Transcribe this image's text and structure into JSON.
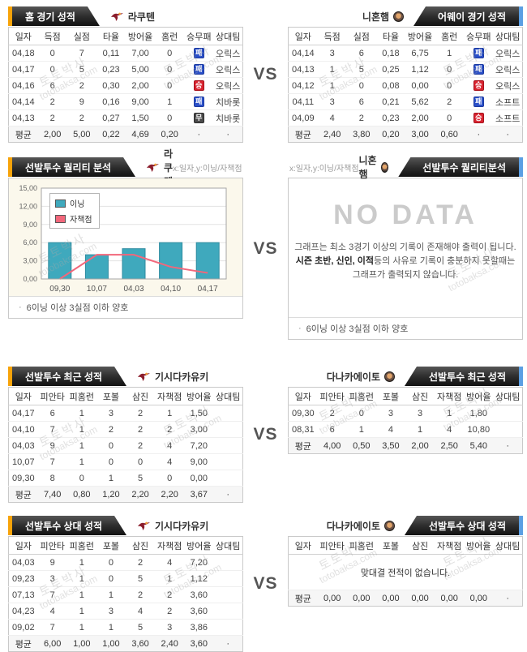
{
  "vs": "VS",
  "bullet": "·",
  "watermark": {
    "kr": "토토박사",
    "en": "totobaksa.com"
  },
  "colors": {
    "accent_left": "#f7a30a",
    "accent_right": "#5b9fe3",
    "win": "#d8232f",
    "loss": "#2b50c8",
    "draw": "#4a4a4a",
    "bar": "#3fa9bd",
    "line": "#f2677b",
    "banner_dark": "#2e2e2e"
  },
  "chart_data": {
    "type": "bar",
    "title": "선발투수 퀄리티 분석 (라쿠텐)",
    "xlabel": "일자",
    "ylabel": "이닝/자책점",
    "categories": [
      "09,30",
      "10,07",
      "04,03",
      "04,10",
      "04,17"
    ],
    "series": [
      {
        "name": "이닝",
        "kind": "bar",
        "color": "#3fa9bd",
        "values": [
          6,
          4,
          5,
          6,
          6
        ]
      },
      {
        "name": "자책점",
        "kind": "line",
        "color": "#f2677b",
        "values": [
          0,
          4,
          4,
          2,
          1
        ]
      }
    ],
    "ylim": [
      0,
      15
    ],
    "yticks": [
      "0,00",
      "3,00",
      "6,00",
      "9,00",
      "12,00",
      "15,00"
    ],
    "grid": true,
    "legend_position": "top-left"
  },
  "sections": {
    "s1": {
      "left": {
        "title": "홈 경기 성적",
        "team": "라쿠텐",
        "table": {
          "columns": [
            "일자",
            "득점",
            "실점",
            "타율",
            "방어율",
            "홈런",
            "승무패",
            "상대팀"
          ],
          "rows": [
            [
              "04,18",
              "0",
              "7",
              "0,11",
              "7,00",
              "0",
              {
                "b": "패",
                "t": "loss"
              },
              "오릭스"
            ],
            [
              "04,17",
              "0",
              "5",
              "0,23",
              "5,00",
              "0",
              {
                "b": "패",
                "t": "loss"
              },
              "오릭스"
            ],
            [
              "04,16",
              "6",
              "2",
              "0,30",
              "2,00",
              "0",
              {
                "b": "승",
                "t": "win"
              },
              "오릭스"
            ],
            [
              "04,14",
              "2",
              "9",
              "0,16",
              "9,00",
              "1",
              {
                "b": "패",
                "t": "loss"
              },
              "치바롯"
            ],
            [
              "04,13",
              "2",
              "2",
              "0,27",
              "1,50",
              "0",
              {
                "b": "무",
                "t": "draw"
              },
              "치바롯"
            ]
          ],
          "avg": [
            "평균",
            "2,00",
            "5,00",
            "0,22",
            "4,69",
            "0,20",
            "·",
            "·"
          ]
        }
      },
      "right": {
        "title": "어웨이 경기 성적",
        "team": "니혼햄",
        "table": {
          "columns": [
            "일자",
            "득점",
            "실점",
            "타율",
            "방어율",
            "홈런",
            "승무패",
            "상대팀"
          ],
          "rows": [
            [
              "04,14",
              "3",
              "6",
              "0,18",
              "6,75",
              "1",
              {
                "b": "패",
                "t": "loss"
              },
              "오릭스"
            ],
            [
              "04,13",
              "1",
              "5",
              "0,25",
              "1,12",
              "0",
              {
                "b": "패",
                "t": "loss"
              },
              "오릭스"
            ],
            [
              "04,12",
              "1",
              "0",
              "0,08",
              "0,00",
              "0",
              {
                "b": "승",
                "t": "win"
              },
              "오릭스"
            ],
            [
              "04,11",
              "3",
              "6",
              "0,21",
              "5,62",
              "2",
              {
                "b": "패",
                "t": "loss"
              },
              "소프트"
            ],
            [
              "04,09",
              "4",
              "2",
              "0,23",
              "2,00",
              "0",
              {
                "b": "승",
                "t": "win"
              },
              "소프트"
            ]
          ],
          "avg": [
            "평균",
            "2,40",
            "3,80",
            "0,20",
            "3,00",
            "0,60",
            "·",
            "·"
          ]
        }
      }
    },
    "s2": {
      "axis_note": "x:일자,y:이닝/자책점",
      "footnote": "6이닝 이상 3실점 이하 양호",
      "left": {
        "title": "선발투수 퀄리티 분석",
        "team": "라쿠텐"
      },
      "right": {
        "title": "선발투수 퀄리티분석",
        "team": "니혼햄",
        "no_data": {
          "title": "NO DATA",
          "line1": "그래프는 최소 3경기 이상의 기록이 존재해야 출력이 됩니다.",
          "line2_bold": "시즌 초반, 신인, 이적",
          "line2_rest": "등의 사유로 기록이 충분하지 못할때는",
          "line3": "그래프가 출력되지 않습니다."
        }
      }
    },
    "s3": {
      "left": {
        "title": "선발투수 최근 성적",
        "team": "기시다카유키",
        "table": {
          "columns": [
            "일자",
            "피안타",
            "피홈런",
            "포볼",
            "삼진",
            "자책점",
            "방어율",
            "상대팀"
          ],
          "rows": [
            [
              "04,17",
              "6",
              "1",
              "3",
              "2",
              "1",
              "1,50",
              ""
            ],
            [
              "04,10",
              "7",
              "1",
              "2",
              "2",
              "2",
              "3,00",
              ""
            ],
            [
              "04,03",
              "9",
              "1",
              "0",
              "2",
              "4",
              "7,20",
              ""
            ],
            [
              "10,07",
              "7",
              "1",
              "0",
              "0",
              "4",
              "9,00",
              ""
            ],
            [
              "09,30",
              "8",
              "0",
              "1",
              "5",
              "0",
              "0,00",
              ""
            ]
          ],
          "avg": [
            "평균",
            "7,40",
            "0,80",
            "1,20",
            "2,20",
            "2,20",
            "3,67",
            "·"
          ]
        }
      },
      "right": {
        "title": "선발투수 최근 성적",
        "team": "다나카에이토",
        "table": {
          "columns": [
            "일자",
            "피안타",
            "피홈런",
            "포볼",
            "삼진",
            "자책점",
            "방어율",
            "상대팀"
          ],
          "rows": [
            [
              "09,30",
              "2",
              "0",
              "3",
              "3",
              "1",
              "1,80",
              ""
            ],
            [
              "08,31",
              "6",
              "1",
              "4",
              "1",
              "4",
              "10,80",
              ""
            ]
          ],
          "avg": [
            "평균",
            "4,00",
            "0,50",
            "3,50",
            "2,00",
            "2,50",
            "5,40",
            "·"
          ]
        }
      }
    },
    "s4": {
      "left": {
        "title": "선발투수 상대 성적",
        "team": "기시다카유키",
        "table": {
          "columns": [
            "일자",
            "피안타",
            "피홈런",
            "포볼",
            "삼진",
            "자책점",
            "방어율",
            "상대팀"
          ],
          "rows": [
            [
              "04,03",
              "9",
              "1",
              "0",
              "2",
              "4",
              "7,20",
              ""
            ],
            [
              "09,23",
              "3",
              "1",
              "0",
              "5",
              "1",
              "1,12",
              ""
            ],
            [
              "07,13",
              "7",
              "1",
              "1",
              "2",
              "2",
              "3,60",
              ""
            ],
            [
              "04,23",
              "4",
              "1",
              "3",
              "4",
              "2",
              "3,60",
              ""
            ],
            [
              "09,02",
              "7",
              "1",
              "1",
              "5",
              "3",
              "3,86",
              ""
            ]
          ],
          "avg": [
            "평균",
            "6,00",
            "1,00",
            "1,00",
            "3,60",
            "2,40",
            "3,60",
            "·"
          ]
        }
      },
      "right": {
        "title": "선발투수 상대 성적",
        "team": "다나카에이토",
        "table": {
          "columns": [
            "일자",
            "피안타",
            "피홈런",
            "포볼",
            "삼진",
            "자책점",
            "방어율",
            "상대팀"
          ],
          "message": "맞대결 전적이 없습니다.",
          "rows": [],
          "avg": [
            "평균",
            "0,00",
            "0,00",
            "0,00",
            "0,00",
            "0,00",
            "0,00",
            "·"
          ]
        }
      }
    }
  }
}
